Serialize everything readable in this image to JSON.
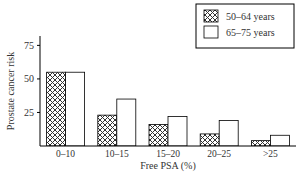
{
  "chart_data": {
    "type": "bar",
    "x_label": "Free PSA (%)",
    "y_label": "Prostate cancer risk",
    "categories": [
      "0–10",
      "10–15",
      "15–20",
      "20–25",
      ">25"
    ],
    "series": [
      {
        "name": "50–64 years",
        "color": "#333333",
        "values": [
          55,
          23,
          16,
          9,
          4
        ]
      },
      {
        "name": "65–75 years",
        "color": "#ffffff",
        "values": [
          55,
          35,
          22,
          19,
          8
        ]
      }
    ],
    "ylim": [
      0,
      82
    ],
    "yticks": [
      25,
      50,
      75
    ],
    "legend": "upper right"
  }
}
